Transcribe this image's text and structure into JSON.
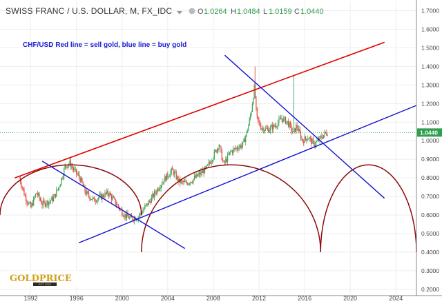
{
  "header": {
    "symbol_title": "SWISS FRANC / U.S. DOLLAR, M, FX_IDC",
    "open_label": "O",
    "open_value": "1.0264",
    "high_label": "H",
    "high_value": "1.0484",
    "low_label": "L",
    "low_value": "1.0159",
    "close_label": "C",
    "close_value": "1.0440"
  },
  "annotation": "CHF/USD Red line = sell gold, blue line = buy gold",
  "logo": {
    "text": "GOLDPRICE",
    "subtext": "EST. 2001"
  },
  "colors": {
    "up": "#33a85a",
    "down": "#e0473a",
    "red_line": "#e00000",
    "blue_line": "#1010d0",
    "arc": "#8b0a0a",
    "price_label_bg": "#2e9e4f"
  },
  "chart_data": {
    "type": "candlestick",
    "title": "SWISS FRANC / U.S. DOLLAR, M, FX_IDC",
    "x_range": [
      1989.3,
      2025.8
    ],
    "ylim": [
      0.17,
      1.75
    ],
    "x_ticks": [
      "1992",
      "1996",
      "2000",
      "2004",
      "2008",
      "2012",
      "2016",
      "2020",
      "2024"
    ],
    "y_ticks": [
      "0.2000",
      "0.3000",
      "0.4000",
      "0.5000",
      "0.6000",
      "0.7000",
      "0.8000",
      "0.9000",
      "1.0000",
      "1.1000",
      "1.2000",
      "1.3000",
      "1.4000",
      "1.5000",
      "1.6000",
      "1.7000"
    ],
    "last_price": "1.0440",
    "grid": true,
    "price_path": [
      [
        1991.0,
        0.8
      ],
      [
        1991.5,
        0.7
      ],
      [
        1992.0,
        0.64
      ],
      [
        1992.5,
        0.72
      ],
      [
        1993.0,
        0.66
      ],
      [
        1993.5,
        0.67
      ],
      [
        1994.0,
        0.69
      ],
      [
        1994.5,
        0.76
      ],
      [
        1995.0,
        0.86
      ],
      [
        1995.4,
        0.88
      ],
      [
        1995.8,
        0.84
      ],
      [
        1996.3,
        0.8
      ],
      [
        1996.8,
        0.72
      ],
      [
        1997.5,
        0.68
      ],
      [
        1998.2,
        0.7
      ],
      [
        1998.8,
        0.72
      ],
      [
        1999.5,
        0.66
      ],
      [
        2000.2,
        0.6
      ],
      [
        2000.8,
        0.58
      ],
      [
        2001.4,
        0.59
      ],
      [
        2002.0,
        0.64
      ],
      [
        2002.6,
        0.69
      ],
      [
        2003.2,
        0.75
      ],
      [
        2003.8,
        0.8
      ],
      [
        2004.4,
        0.84
      ],
      [
        2005.0,
        0.78
      ],
      [
        2005.6,
        0.77
      ],
      [
        2006.2,
        0.79
      ],
      [
        2006.8,
        0.82
      ],
      [
        2007.4,
        0.85
      ],
      [
        2008.0,
        0.92
      ],
      [
        2008.5,
        0.98
      ],
      [
        2008.9,
        0.87
      ],
      [
        2009.5,
        0.94
      ],
      [
        2010.0,
        0.96
      ],
      [
        2010.6,
        0.98
      ],
      [
        2011.0,
        1.06
      ],
      [
        2011.3,
        1.15
      ],
      [
        2011.6,
        1.29
      ],
      [
        2011.8,
        1.12
      ],
      [
        2012.2,
        1.07
      ],
      [
        2012.8,
        1.06
      ],
      [
        2013.4,
        1.08
      ],
      [
        2014.0,
        1.12
      ],
      [
        2014.5,
        1.1
      ],
      [
        2015.0,
        1.04
      ],
      [
        2015.3,
        1.08
      ],
      [
        2015.8,
        1.0
      ],
      [
        2016.3,
        1.02
      ],
      [
        2016.8,
        0.98
      ],
      [
        2017.2,
        1.0
      ],
      [
        2017.8,
        1.04
      ],
      [
        2018.0,
        1.044
      ]
    ],
    "red_line": [
      [
        1990.6,
        0.8
      ],
      [
        2023.0,
        1.53
      ]
    ],
    "blue_lines": [
      [
        [
          1996.2,
          0.45
        ],
        [
          2025.8,
          1.19
        ]
      ],
      [
        [
          1993.0,
          0.89
        ],
        [
          2005.5,
          0.42
        ]
      ],
      [
        [
          2009.0,
          1.46
        ],
        [
          2023.0,
          0.69
        ]
      ]
    ],
    "arcs": [
      {
        "x0": 1989.3,
        "x1": 2001.7,
        "top": 0.87,
        "bottom": 0.6
      },
      {
        "x0": 2001.7,
        "x1": 2017.4,
        "top": 0.87,
        "bottom": 0.4
      },
      {
        "x0": 2017.4,
        "x1": 2025.8,
        "top": 0.87,
        "bottom": 0.4
      }
    ]
  }
}
